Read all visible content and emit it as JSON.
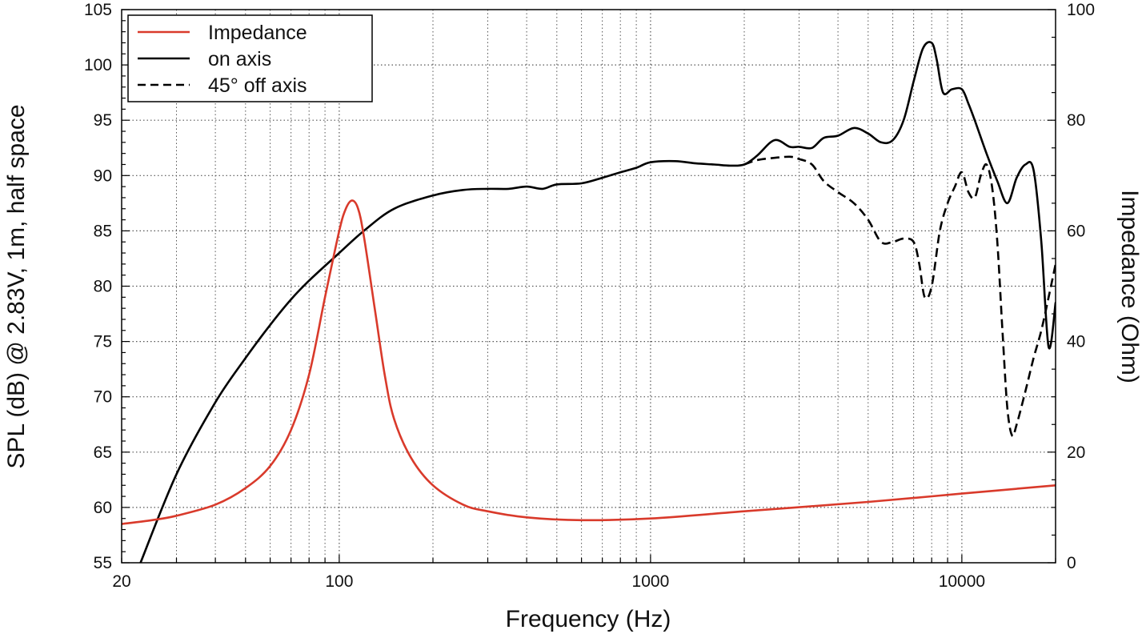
{
  "chart_data": {
    "type": "line",
    "xscale": "log",
    "xlabel": "Frequency (Hz)",
    "ylabel": "SPL (dB) @ 2.83V, 1m, half space",
    "y2label": "Impedance (Ohm)",
    "xlim": [
      20,
      20000
    ],
    "ylim": [
      55,
      105
    ],
    "y2lim": [
      0,
      100
    ],
    "xticks": [
      20,
      100,
      1000,
      10000
    ],
    "xtick_labels": [
      "20",
      "100",
      "1000",
      "10000"
    ],
    "yticks": [
      55,
      60,
      65,
      70,
      75,
      80,
      85,
      90,
      95,
      100,
      105
    ],
    "ytick_labels": [
      "55",
      "60",
      "65",
      "70",
      "75",
      "80",
      "85",
      "90",
      "95",
      "100",
      "105"
    ],
    "y2ticks": [
      0,
      20,
      40,
      60,
      80,
      100
    ],
    "y2tick_labels": [
      "0",
      "20",
      "40",
      "60",
      "80",
      "100"
    ],
    "grid": true,
    "legend_position": "top-left",
    "colors": {
      "impedance": "#d93a2b",
      "on_axis": "#000000",
      "off_axis": "#000000",
      "grid": "#555555"
    },
    "series": [
      {
        "name": "Impedance",
        "axis": "right",
        "style": "solid",
        "x": [
          20,
          25,
          30,
          40,
          50,
          60,
          70,
          80,
          90,
          100,
          105,
          110,
          115,
          120,
          130,
          140,
          150,
          170,
          200,
          250,
          300,
          400,
          600,
          1000,
          2000,
          5000,
          10000,
          20000
        ],
        "y": [
          7,
          7.7,
          8.5,
          10.5,
          13.5,
          17.5,
          24,
          34,
          48,
          60,
          64,
          65.5,
          64,
          59,
          46,
          34,
          26,
          19,
          14,
          10.5,
          9.3,
          8.2,
          7.7,
          8,
          9.3,
          11,
          12.5,
          14
        ]
      },
      {
        "name": "on axis",
        "axis": "left",
        "style": "solid",
        "x": [
          23,
          30,
          40,
          50,
          60,
          70,
          80,
          100,
          120,
          150,
          200,
          250,
          300,
          350,
          400,
          450,
          500,
          600,
          700,
          800,
          900,
          1000,
          1200,
          1400,
          1600,
          1800,
          2000,
          2200,
          2500,
          2800,
          3000,
          3300,
          3600,
          4000,
          4500,
          5000,
          5500,
          6000,
          6500,
          7000,
          7500,
          8000,
          8300,
          8700,
          9300,
          10000,
          10500,
          11000,
          12000,
          13000,
          14000,
          15000,
          16000,
          17000,
          18000,
          19000,
          20000
        ],
        "y": [
          55,
          63,
          69.5,
          73.5,
          76.5,
          78.8,
          80.5,
          83,
          85,
          87,
          88.2,
          88.7,
          88.8,
          88.8,
          89,
          88.8,
          89.2,
          89.3,
          89.8,
          90.3,
          90.7,
          91.2,
          91.3,
          91.1,
          91,
          90.9,
          91,
          91.8,
          93.2,
          92.6,
          92.6,
          92.5,
          93.4,
          93.6,
          94.3,
          93.8,
          93,
          93.2,
          95,
          98.5,
          101.5,
          102,
          100.5,
          97.5,
          97.8,
          97.8,
          96.5,
          95,
          92,
          89.5,
          87.5,
          89.8,
          91,
          90.5,
          84,
          74.5,
          78.5
        ]
      },
      {
        "name": "45° off axis",
        "axis": "left",
        "style": "dashed",
        "x": [
          2000,
          2200,
          2500,
          2800,
          3000,
          3300,
          3600,
          4000,
          4500,
          5000,
          5500,
          6000,
          6500,
          7000,
          7300,
          7600,
          8000,
          8500,
          9000,
          9500,
          10000,
          10500,
          11000,
          11500,
          12000,
          12500,
          13000,
          13500,
          14000,
          14500,
          15000,
          16000,
          17000,
          18000,
          19000,
          20000
        ],
        "y": [
          91,
          91.4,
          91.6,
          91.7,
          91.5,
          91,
          89.5,
          88.5,
          87.5,
          86,
          84,
          84,
          84.3,
          84,
          82,
          79,
          80,
          85,
          87.5,
          89,
          90.3,
          88.5,
          88,
          90,
          91,
          89,
          84,
          76,
          69,
          66.5,
          67.5,
          70.5,
          73.5,
          76,
          79,
          82
        ]
      }
    ],
    "legend": [
      "Impedance",
      "on axis",
      "45° off axis"
    ]
  }
}
